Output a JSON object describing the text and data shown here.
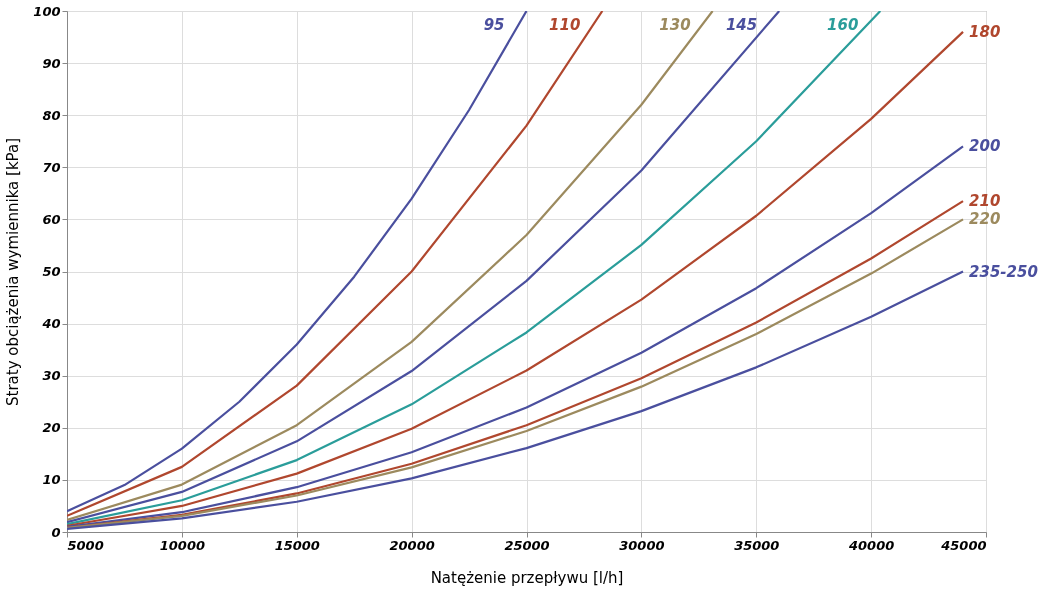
{
  "chart_data": {
    "type": "line",
    "xlabel": "Natężenie przepływu [l/h]",
    "ylabel": "Straty obciążenia wymiennika [kPa]",
    "xlim": [
      5000,
      45000
    ],
    "xticks": [
      5000,
      10000,
      15000,
      20000,
      25000,
      30000,
      35000,
      40000,
      45000
    ],
    "ylim": [
      0,
      100
    ],
    "yticks": [
      0,
      10,
      20,
      30,
      40,
      50,
      60,
      70,
      80,
      90,
      100
    ],
    "grid": true,
    "marker": "none",
    "line_style": "solid",
    "series": [
      {
        "name": "95",
        "color": "#4a4f9e",
        "x": [
          5000,
          7500,
          10000,
          12500,
          15000,
          17500,
          20000,
          22500,
          25000
        ],
        "values": [
          4,
          9,
          16,
          25,
          36,
          49,
          64,
          81,
          100
        ]
      },
      {
        "name": "110",
        "color": "#b0472e",
        "x": [
          5000,
          10000,
          15000,
          20000,
          25000,
          28300
        ],
        "values": [
          3.1,
          12.5,
          28.1,
          50,
          78,
          100
        ]
      },
      {
        "name": "130",
        "color": "#9c8a5e",
        "x": [
          5000,
          10000,
          15000,
          20000,
          25000,
          30000,
          33100
        ],
        "values": [
          2.3,
          9.1,
          20.5,
          36.5,
          57,
          82,
          100
        ]
      },
      {
        "name": "145",
        "color": "#4a4f9e",
        "x": [
          5000,
          10000,
          15000,
          20000,
          25000,
          30000,
          36000
        ],
        "values": [
          1.9,
          7.7,
          17.4,
          30.9,
          48.2,
          69.4,
          100
        ]
      },
      {
        "name": "160",
        "color": "#2a9d9a",
        "x": [
          5000,
          10000,
          15000,
          20000,
          25000,
          30000,
          35000,
          40400
        ],
        "values": [
          1.5,
          6.1,
          13.8,
          24.5,
          38.3,
          55.1,
          75,
          100
        ]
      },
      {
        "name": "180",
        "color": "#b0472e",
        "x": [
          5000,
          10000,
          15000,
          20000,
          25000,
          30000,
          35000,
          40000,
          44000
        ],
        "values": [
          1.2,
          5,
          11.2,
          19.8,
          31,
          44.6,
          60.7,
          79.3,
          96
        ]
      },
      {
        "name": "200",
        "color": "#4a4f9e",
        "x": [
          5000,
          10000,
          15000,
          20000,
          25000,
          30000,
          35000,
          40000,
          44000
        ],
        "values": [
          1,
          3.8,
          8.6,
          15.3,
          23.9,
          34.4,
          46.8,
          61.2,
          74
        ]
      },
      {
        "name": "210",
        "color": "#b0472e",
        "x": [
          5000,
          10000,
          15000,
          20000,
          25000,
          30000,
          35000,
          40000,
          44000
        ],
        "values": [
          0.8,
          3.3,
          7.4,
          13.1,
          20.5,
          29.5,
          40.2,
          52.5,
          63.5
        ]
      },
      {
        "name": "220",
        "color": "#9c8a5e",
        "x": [
          5000,
          10000,
          15000,
          20000,
          25000,
          30000,
          35000,
          40000,
          44000
        ],
        "values": [
          0.8,
          3.1,
          7,
          12.4,
          19.4,
          27.9,
          38,
          49.6,
          60
        ]
      },
      {
        "name": "235-250",
        "color": "#4a4f9e",
        "x": [
          5000,
          10000,
          15000,
          20000,
          25000,
          30000,
          35000,
          40000,
          44000
        ],
        "values": [
          0.6,
          2.6,
          5.8,
          10.3,
          16.1,
          23.2,
          31.6,
          41.3,
          50
        ]
      }
    ]
  }
}
